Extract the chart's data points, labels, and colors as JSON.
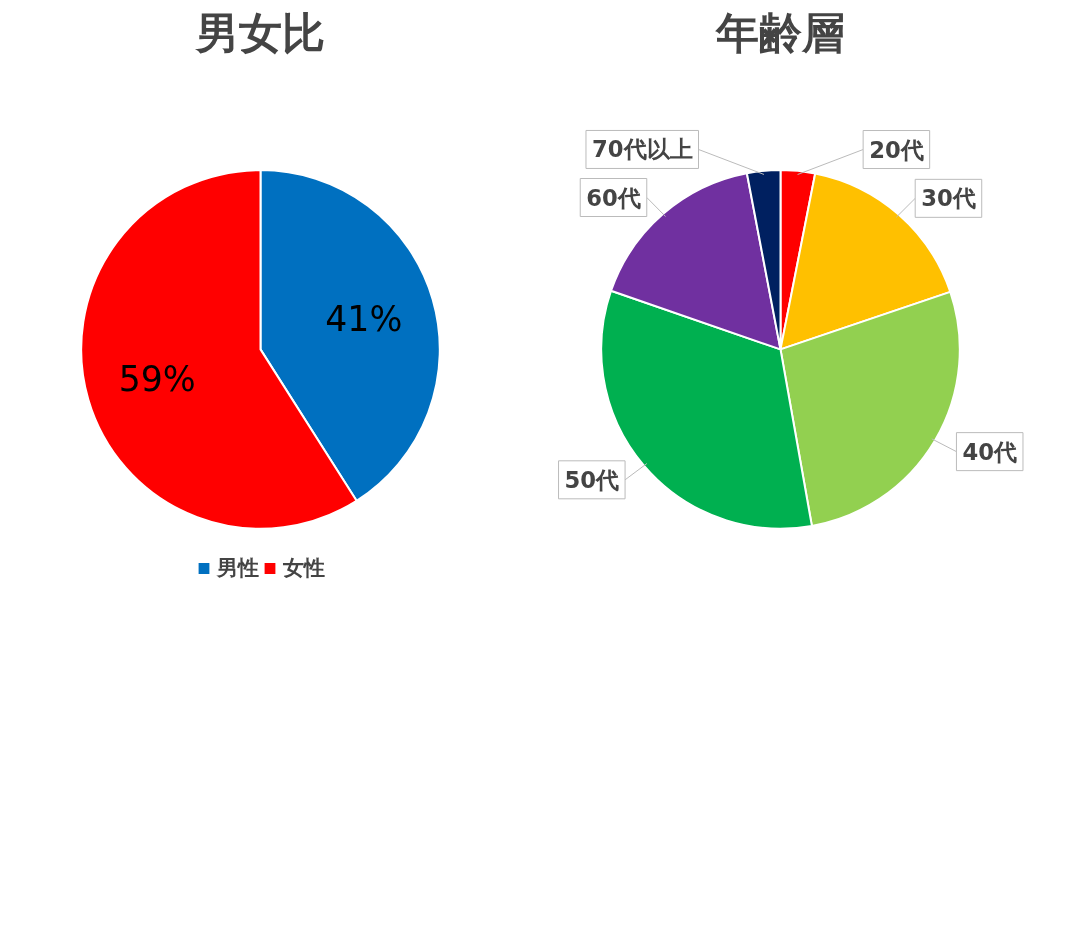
{
  "chart_data": [
    {
      "type": "pie",
      "title": "男女比",
      "categories": [
        "男性",
        "女性"
      ],
      "values": [
        41,
        59
      ],
      "colors": [
        "#0070c0",
        "#ff0000"
      ],
      "value_labels": [
        "41%",
        "59%"
      ],
      "legend": "bottom"
    },
    {
      "type": "pie",
      "title": "年齢層",
      "categories": [
        "20代",
        "30代",
        "40代",
        "50代",
        "60代",
        "70代以上"
      ],
      "values": [
        3.1,
        16.7,
        27.4,
        33.1,
        16.7,
        3.0
      ],
      "colors": [
        "#ff0000",
        "#ffc000",
        "#92d050",
        "#00b050",
        "#7030a0",
        "#002060"
      ]
    }
  ]
}
